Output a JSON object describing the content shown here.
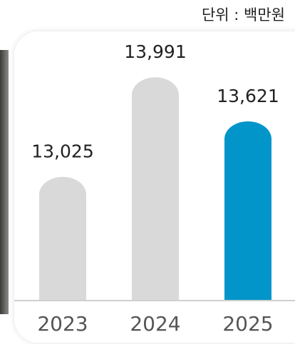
{
  "chart_data": {
    "type": "bar",
    "unit_label": "단위 : 백만원",
    "categories": [
      "2023",
      "2024",
      "2025"
    ],
    "values": [
      13025,
      13991,
      13621
    ],
    "value_labels": [
      "13,025",
      "13,991",
      "13,621"
    ],
    "colors": [
      "#d9d9d9",
      "#d9d9d9",
      "#0195c9"
    ]
  }
}
